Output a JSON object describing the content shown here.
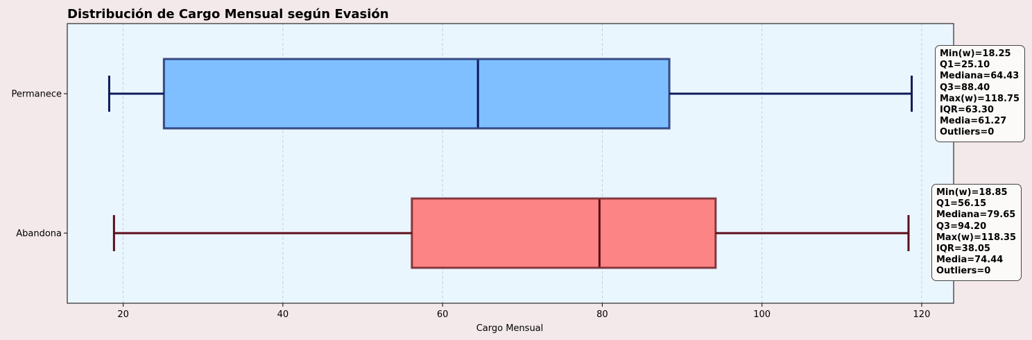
{
  "chart_data": {
    "type": "boxplot",
    "orientation": "horizontal",
    "title": "Distribución de Cargo Mensual según Evasión",
    "xlabel": "Cargo Mensual",
    "ylabel": "",
    "xlim": [
      13,
      124
    ],
    "xticks": [
      20,
      40,
      60,
      80,
      100,
      120
    ],
    "grid": "x-axis dashed",
    "background_color": "#eaf6fd",
    "series": [
      {
        "name": "Permanece",
        "color": "#7fbfff",
        "edge_color": "#0d1a5c",
        "min_whisker": 18.25,
        "q1": 25.1,
        "median": 64.43,
        "q3": 88.4,
        "max_whisker": 118.75,
        "iqr": 63.3,
        "mean": 61.27,
        "outliers": 0,
        "stats_lines": [
          "Min(w)=18.25",
          "Q1=25.10",
          "Mediana=64.43",
          "Q3=88.40",
          "Max(w)=118.75",
          "IQR=63.30",
          "Media=61.27",
          "Outliers=0"
        ]
      },
      {
        "name": "Abandona",
        "color": "#fd8484",
        "edge_color": "#5c0d1a",
        "min_whisker": 18.85,
        "q1": 56.15,
        "median": 79.65,
        "q3": 94.2,
        "max_whisker": 118.35,
        "iqr": 38.05,
        "mean": 74.44,
        "outliers": 0,
        "stats_lines": [
          "Min(w)=18.85",
          "Q1=56.15",
          "Mediana=79.65",
          "Q3=94.20",
          "Max(w)=118.35",
          "IQR=38.05",
          "Media=74.44",
          "Outliers=0"
        ]
      }
    ]
  }
}
